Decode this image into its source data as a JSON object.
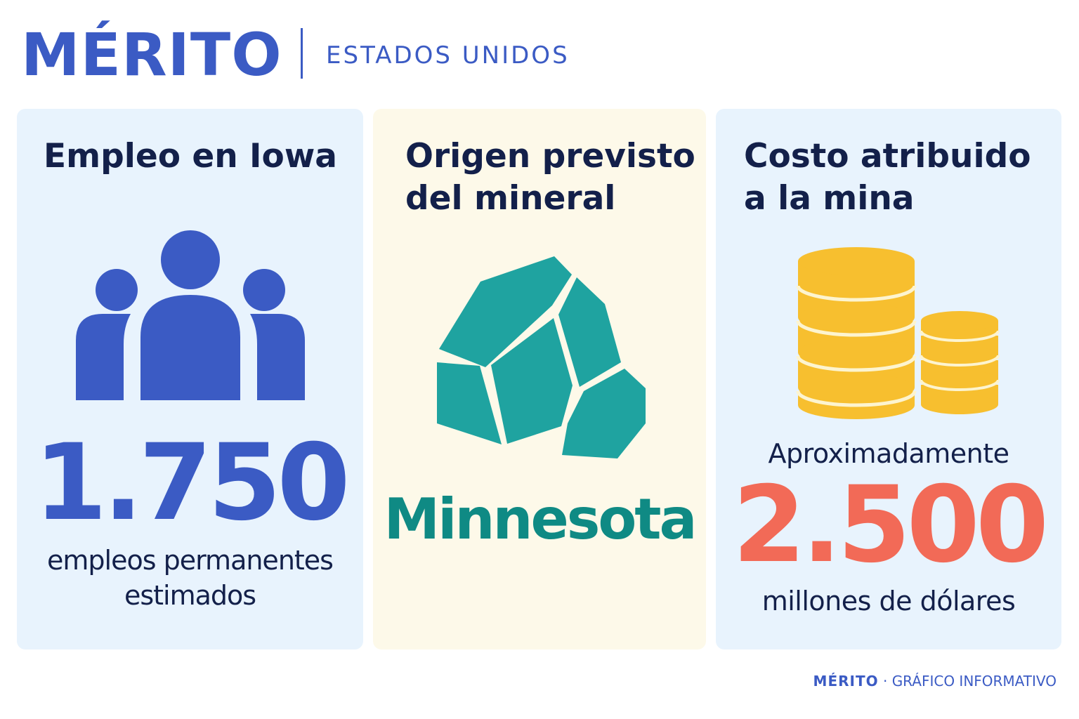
{
  "header": {
    "brand": "MÉRITO",
    "region": "ESTADOS UNIDOS"
  },
  "cards": [
    {
      "title": "Empleo en Iowa",
      "icon": "people-icon",
      "value": "1.750",
      "caption": "empleos permanentes\nestimados"
    },
    {
      "title": "Origen previsto\ndel mineral",
      "icon": "mineral-rock-icon",
      "value": "Minnesota"
    },
    {
      "title": "Costo atribuido\na la mina",
      "icon": "coins-icon",
      "pre_caption": "Aproximadamente",
      "value": "2.500",
      "caption": "millones de dólares"
    }
  ],
  "footer": {
    "brand": "MÉRITO",
    "separator": "·",
    "label": "GRÁFICO INFORMATIVO"
  },
  "colors": {
    "brand_blue": "#3b5bc4",
    "dark_navy": "#13204a",
    "teal": "#1fa3a0",
    "teal_dark": "#0f8a84",
    "coin_yellow": "#f7bf2f",
    "accent_red": "#f26a57",
    "card_blue": "#e8f3fd",
    "card_cream": "#fdf9e9"
  }
}
